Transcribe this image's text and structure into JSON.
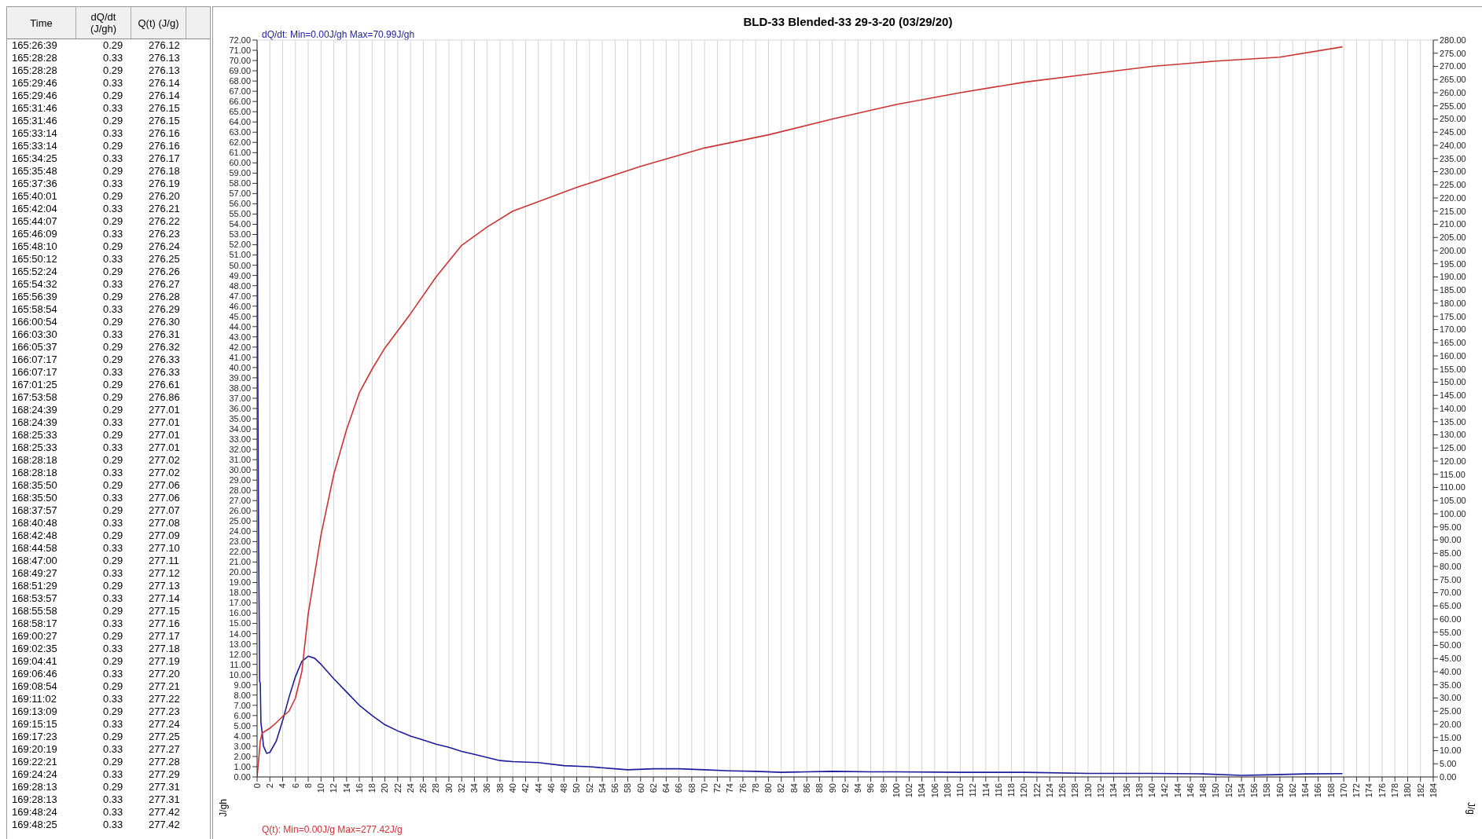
{
  "chart_data": [
    {
      "type": "other",
      "categories": [
        "Time",
        "dQ/dt (J/gh)",
        "Q(t) (J/g)"
      ],
      "cell_labels": [
        [
          "165:26:39",
          "0.29",
          "276.12"
        ],
        [
          "165:28:28",
          "0.33",
          "276.13"
        ],
        [
          "165:28:28",
          "0.29",
          "276.13"
        ],
        [
          "165:29:46",
          "0.33",
          "276.14"
        ],
        [
          "165:29:46",
          "0.29",
          "276.14"
        ],
        [
          "165:31:46",
          "0.33",
          "276.15"
        ],
        [
          "165:31:46",
          "0.29",
          "276.15"
        ],
        [
          "165:33:14",
          "0.33",
          "276.16"
        ],
        [
          "165:33:14",
          "0.29",
          "276.16"
        ],
        [
          "165:34:25",
          "0.33",
          "276.17"
        ],
        [
          "165:35:48",
          "0.29",
          "276.18"
        ],
        [
          "165:37:36",
          "0.33",
          "276.19"
        ],
        [
          "165:40:01",
          "0.29",
          "276.20"
        ],
        [
          "165:42:04",
          "0.33",
          "276.21"
        ],
        [
          "165:44:07",
          "0.29",
          "276.22"
        ],
        [
          "165:46:09",
          "0.33",
          "276.23"
        ],
        [
          "165:48:10",
          "0.29",
          "276.24"
        ],
        [
          "165:50:12",
          "0.33",
          "276.25"
        ],
        [
          "165:52:24",
          "0.29",
          "276.26"
        ],
        [
          "165:54:32",
          "0.33",
          "276.27"
        ],
        [
          "165:56:39",
          "0.29",
          "276.28"
        ],
        [
          "165:58:54",
          "0.33",
          "276.29"
        ],
        [
          "166:00:54",
          "0.29",
          "276.30"
        ],
        [
          "166:03:30",
          "0.33",
          "276.31"
        ],
        [
          "166:05:37",
          "0.29",
          "276.32"
        ],
        [
          "166:07:17",
          "0.29",
          "276.33"
        ],
        [
          "166:07:17",
          "0.33",
          "276.33"
        ],
        [
          "167:01:25",
          "0.29",
          "276.61"
        ],
        [
          "167:53:58",
          "0.29",
          "276.86"
        ],
        [
          "168:24:39",
          "0.29",
          "277.01"
        ],
        [
          "168:24:39",
          "0.33",
          "277.01"
        ],
        [
          "168:25:33",
          "0.29",
          "277.01"
        ],
        [
          "168:25:33",
          "0.33",
          "277.01"
        ],
        [
          "168:28:18",
          "0.29",
          "277.02"
        ],
        [
          "168:28:18",
          "0.33",
          "277.02"
        ],
        [
          "168:35:50",
          "0.29",
          "277.06"
        ],
        [
          "168:35:50",
          "0.33",
          "277.06"
        ],
        [
          "168:37:57",
          "0.29",
          "277.07"
        ],
        [
          "168:40:48",
          "0.33",
          "277.08"
        ],
        [
          "168:42:48",
          "0.29",
          "277.09"
        ],
        [
          "168:44:58",
          "0.33",
          "277.10"
        ],
        [
          "168:47:00",
          "0.29",
          "277.11"
        ],
        [
          "168:49:27",
          "0.33",
          "277.12"
        ],
        [
          "168:51:29",
          "0.29",
          "277.13"
        ],
        [
          "168:53:57",
          "0.33",
          "277.14"
        ],
        [
          "168:55:58",
          "0.29",
          "277.15"
        ],
        [
          "168:58:17",
          "0.33",
          "277.16"
        ],
        [
          "169:00:27",
          "0.29",
          "277.17"
        ],
        [
          "169:02:35",
          "0.33",
          "277.18"
        ],
        [
          "169:04:41",
          "0.29",
          "277.19"
        ],
        [
          "169:06:46",
          "0.33",
          "277.20"
        ],
        [
          "169:08:54",
          "0.29",
          "277.21"
        ],
        [
          "169:11:02",
          "0.33",
          "277.22"
        ],
        [
          "169:13:09",
          "0.29",
          "277.23"
        ],
        [
          "169:15:15",
          "0.33",
          "277.24"
        ],
        [
          "169:17:23",
          "0.29",
          "277.25"
        ],
        [
          "169:20:19",
          "0.33",
          "277.27"
        ],
        [
          "169:22:21",
          "0.29",
          "277.28"
        ],
        [
          "169:24:24",
          "0.33",
          "277.29"
        ],
        [
          "169:28:13",
          "0.29",
          "277.31"
        ],
        [
          "169:28:13",
          "0.33",
          "277.31"
        ],
        [
          "169:48:24",
          "0.33",
          "277.42"
        ],
        [
          "169:48:25",
          "0.33",
          "277.42"
        ]
      ]
    },
    {
      "type": "line",
      "title": "BLD-33  Blended-33  29-3-20 (03/29/20)",
      "ylabel": "J/gh",
      "y2label": "J/g",
      "annotations": [
        "dQ/dt: Min=0.00J/gh  Max=70.99J/gh",
        "Q(t): Min=0.00J/g  Max=277.42J/g"
      ],
      "grid": true,
      "marker": "none",
      "line_style": "solid",
      "xlim": [
        0,
        184
      ],
      "xticks": [
        0,
        2,
        4,
        6,
        8,
        10,
        12,
        14,
        16,
        18,
        20,
        22,
        24,
        26,
        28,
        30,
        32,
        34,
        36,
        38,
        40,
        42,
        44,
        46,
        48,
        50,
        52,
        54,
        56,
        58,
        60,
        62,
        64,
        66,
        68,
        70,
        72,
        74,
        76,
        78,
        80,
        82,
        84,
        86,
        88,
        90,
        92,
        94,
        96,
        98,
        100,
        102,
        104,
        106,
        108,
        110,
        112,
        114,
        116,
        118,
        120,
        122,
        124,
        126,
        128,
        130,
        132,
        134,
        136,
        138,
        140,
        142,
        144,
        146,
        148,
        150,
        152,
        154,
        156,
        158,
        160,
        162,
        164,
        166,
        168,
        170,
        172,
        174,
        176,
        178,
        180,
        182,
        184
      ],
      "ylim": [
        0,
        72
      ],
      "yticks": [
        {
          "value": 0,
          "label": "0.00"
        },
        {
          "value": 1,
          "label": "1.00"
        },
        {
          "value": 2,
          "label": "2.00"
        },
        {
          "value": 3,
          "label": "3.00"
        },
        {
          "value": 4,
          "label": "4.00"
        },
        {
          "value": 5,
          "label": "5.00"
        },
        {
          "value": 6,
          "label": "6.00"
        },
        {
          "value": 7,
          "label": "7.00"
        },
        {
          "value": 8,
          "label": "8.00"
        },
        {
          "value": 9,
          "label": "9.00"
        },
        {
          "value": 10,
          "label": "10.00"
        },
        {
          "value": 11,
          "label": "11.00"
        },
        {
          "value": 12,
          "label": "12.00"
        },
        {
          "value": 13,
          "label": "13.00"
        },
        {
          "value": 14,
          "label": "14.00"
        },
        {
          "value": 15,
          "label": "15.00"
        },
        {
          "value": 16,
          "label": "16.00"
        },
        {
          "value": 17,
          "label": "17.00"
        },
        {
          "value": 18,
          "label": "18.00"
        },
        {
          "value": 19,
          "label": "19.00"
        },
        {
          "value": 20,
          "label": "20.00"
        },
        {
          "value": 21,
          "label": "21.00"
        },
        {
          "value": 22,
          "label": "22.00"
        },
        {
          "value": 23,
          "label": "23.00"
        },
        {
          "value": 24,
          "label": "24.00"
        },
        {
          "value": 25,
          "label": "25.00"
        },
        {
          "value": 26,
          "label": "26.00"
        },
        {
          "value": 27,
          "label": "27.00"
        },
        {
          "value": 28,
          "label": "28.00"
        },
        {
          "value": 29,
          "label": "29.00"
        },
        {
          "value": 30,
          "label": "30.00"
        },
        {
          "value": 31,
          "label": "31.00"
        },
        {
          "value": 32,
          "label": "32.00"
        },
        {
          "value": 33,
          "label": "33.00"
        },
        {
          "value": 34,
          "label": "34.00"
        },
        {
          "value": 35,
          "label": "35.00"
        },
        {
          "value": 36,
          "label": "36.00"
        },
        {
          "value": 37,
          "label": "37.00"
        },
        {
          "value": 38,
          "label": "38.00"
        },
        {
          "value": 39,
          "label": "39.00"
        },
        {
          "value": 40,
          "label": "40.00"
        },
        {
          "value": 41,
          "label": "41.00"
        },
        {
          "value": 42,
          "label": "42.00"
        },
        {
          "value": 43,
          "label": "43.00"
        },
        {
          "value": 44,
          "label": "44.00"
        },
        {
          "value": 45,
          "label": "45.00"
        },
        {
          "value": 46,
          "label": "46.00"
        },
        {
          "value": 47,
          "label": "47.00"
        },
        {
          "value": 48,
          "label": "48.00"
        },
        {
          "value": 49,
          "label": "49.00"
        },
        {
          "value": 50,
          "label": "50.00"
        },
        {
          "value": 51,
          "label": "51.00"
        },
        {
          "value": 52,
          "label": "52.00"
        },
        {
          "value": 53,
          "label": "53.00"
        },
        {
          "value": 54,
          "label": "54.00"
        },
        {
          "value": 55,
          "label": "55.00"
        },
        {
          "value": 56,
          "label": "56.00"
        },
        {
          "value": 57,
          "label": "57.00"
        },
        {
          "value": 58,
          "label": "58.00"
        },
        {
          "value": 59,
          "label": "59.00"
        },
        {
          "value": 60,
          "label": "60.00"
        },
        {
          "value": 61,
          "label": "61.00"
        },
        {
          "value": 62,
          "label": "62.00"
        },
        {
          "value": 63,
          "label": "63.00"
        },
        {
          "value": 64,
          "label": "64.00"
        },
        {
          "value": 65,
          "label": "65.00"
        },
        {
          "value": 66,
          "label": "66.00"
        },
        {
          "value": 67,
          "label": "67.00"
        },
        {
          "value": 68,
          "label": "68.00"
        },
        {
          "value": 69,
          "label": "69.00"
        },
        {
          "value": 70,
          "label": "70.00"
        },
        {
          "value": 71,
          "label": "71.00"
        },
        {
          "value": 72,
          "label": "72.00"
        }
      ],
      "y2lim": [
        0,
        280
      ],
      "y2ticks": [
        {
          "value": 0,
          "label": "0.00"
        },
        {
          "value": 5,
          "label": "5.00"
        },
        {
          "value": 10,
          "label": "10.00"
        },
        {
          "value": 15,
          "label": "15.00"
        },
        {
          "value": 20,
          "label": "20.00"
        },
        {
          "value": 25,
          "label": "25.00"
        },
        {
          "value": 30,
          "label": "30.00"
        },
        {
          "value": 35,
          "label": "35.00"
        },
        {
          "value": 40,
          "label": "40.00"
        },
        {
          "value": 45,
          "label": "45.00"
        },
        {
          "value": 50,
          "label": "50.00"
        },
        {
          "value": 55,
          "label": "55.00"
        },
        {
          "value": 60,
          "label": "60.00"
        },
        {
          "value": 65,
          "label": "65.00"
        },
        {
          "value": 70,
          "label": "70.00"
        },
        {
          "value": 75,
          "label": "75.00"
        },
        {
          "value": 80,
          "label": "80.00"
        },
        {
          "value": 85,
          "label": "85.00"
        },
        {
          "value": 90,
          "label": "90.00"
        },
        {
          "value": 95,
          "label": "95.00"
        },
        {
          "value": 100,
          "label": "100.00"
        },
        {
          "value": 105,
          "label": "105.00"
        },
        {
          "value": 110,
          "label": "110.00"
        },
        {
          "value": 115,
          "label": "115.00"
        },
        {
          "value": 120,
          "label": "120.00"
        },
        {
          "value": 125,
          "label": "125.00"
        },
        {
          "value": 130,
          "label": "130.00"
        },
        {
          "value": 135,
          "label": "135.00"
        },
        {
          "value": 140,
          "label": "140.00"
        },
        {
          "value": 145,
          "label": "145.00"
        },
        {
          "value": 150,
          "label": "150.00"
        },
        {
          "value": 155,
          "label": "155.00"
        },
        {
          "value": 160,
          "label": "160.00"
        },
        {
          "value": 165,
          "label": "165.00"
        },
        {
          "value": 170,
          "label": "170.00"
        },
        {
          "value": 175,
          "label": "175.00"
        },
        {
          "value": 180,
          "label": "180.00"
        },
        {
          "value": 185,
          "label": "185.00"
        },
        {
          "value": 190,
          "label": "190.00"
        },
        {
          "value": 195,
          "label": "195.00"
        },
        {
          "value": 200,
          "label": "200.00"
        },
        {
          "value": 205,
          "label": "205.00"
        },
        {
          "value": 210,
          "label": "210.00"
        },
        {
          "value": 215,
          "label": "215.00"
        },
        {
          "value": 220,
          "label": "220.00"
        },
        {
          "value": 225,
          "label": "225.00"
        },
        {
          "value": 230,
          "label": "230.00"
        },
        {
          "value": 235,
          "label": "235.00"
        },
        {
          "value": 240,
          "label": "240.00"
        },
        {
          "value": 245,
          "label": "245.00"
        },
        {
          "value": 250,
          "label": "250.00"
        },
        {
          "value": 255,
          "label": "255.00"
        },
        {
          "value": 260,
          "label": "260.00"
        },
        {
          "value": 265,
          "label": "265.00"
        },
        {
          "value": 270,
          "label": "270.00"
        },
        {
          "value": 275,
          "label": "275.00"
        },
        {
          "value": 280,
          "label": "280.00"
        }
      ],
      "series": [
        {
          "color": "#1c1c9c",
          "x": [
            0,
            0.1,
            0.25,
            0.4,
            0.5,
            0.6,
            0.8,
            1,
            1.5,
            2,
            3,
            4,
            5,
            6,
            7,
            8,
            9,
            10,
            12,
            14,
            16,
            18,
            20,
            22,
            24,
            26,
            28,
            30,
            32,
            34,
            36,
            38,
            40,
            44,
            48,
            52,
            56,
            58,
            62,
            66,
            70,
            74,
            78,
            82,
            86,
            90,
            96,
            100,
            110,
            120,
            130,
            140,
            148,
            154,
            158,
            164,
            169.8
          ],
          "values": [
            70.99,
            40,
            22,
            9.3,
            9.2,
            5.3,
            4.3,
            3,
            2.3,
            2.4,
            3.5,
            5.5,
            7.8,
            9.8,
            11.3,
            11.8,
            11.6,
            11,
            9.6,
            8.3,
            7,
            6,
            5.1,
            4.5,
            4,
            3.6,
            3.2,
            2.9,
            2.5,
            2.2,
            1.9,
            1.6,
            1.5,
            1.4,
            1.1,
            1,
            0.8,
            0.7,
            0.8,
            0.8,
            0.7,
            0.6,
            0.55,
            0.45,
            0.5,
            0.55,
            0.5,
            0.5,
            0.45,
            0.45,
            0.35,
            0.35,
            0.3,
            0.15,
            0.2,
            0.3,
            0.33
          ]
        },
        {
          "color": "#cc3333",
          "axis": "y2",
          "x": [
            0,
            0.3,
            0.5,
            0.8,
            2,
            3,
            4,
            5,
            6,
            7,
            8,
            10,
            12,
            14,
            16,
            18,
            20,
            24,
            28,
            32,
            36,
            40,
            50,
            60,
            70,
            80,
            90,
            100,
            110,
            120,
            130,
            140,
            150,
            160,
            169.8
          ],
          "values": [
            0,
            8,
            13.6,
            16.7,
            18.5,
            20.6,
            23,
            25,
            30,
            40,
            62,
            92,
            115,
            132,
            146,
            155,
            163,
            176,
            190,
            202,
            209,
            215,
            224,
            232,
            239,
            244,
            250,
            255.5,
            260,
            264,
            267,
            270,
            272,
            273.5,
            277.42
          ]
        }
      ]
    }
  ]
}
